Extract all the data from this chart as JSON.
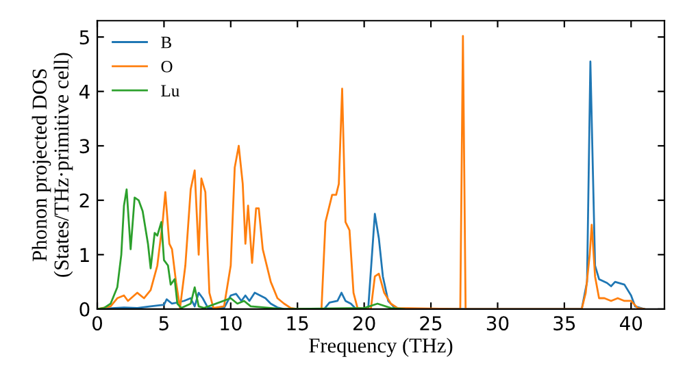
{
  "chart_data": {
    "type": "line",
    "xlabel": "Frequency (THz)",
    "ylabel": "Phonon projected DOS\n(States/THz·primitive cell)",
    "xlim": [
      0,
      42.5
    ],
    "ylim": [
      0,
      5.3
    ],
    "xticks": [
      0,
      5,
      10,
      15,
      20,
      25,
      30,
      35,
      40
    ],
    "yticks": [
      0,
      1,
      2,
      3,
      4,
      5
    ],
    "grid": false,
    "legend": "top left",
    "marker": "none",
    "line_style": "solid",
    "series": [
      {
        "name": "B",
        "color": "#1f77b4",
        "x": [
          0,
          2,
          3,
          4,
          5,
          5.2,
          5.6,
          6.5,
          7,
          7.3,
          7.6,
          7.9,
          8.3,
          9.5,
          10,
          10.4,
          10.8,
          11.1,
          11.4,
          11.8,
          12.2,
          12.6,
          13,
          13.5,
          14,
          17,
          17.4,
          18,
          18.3,
          18.6,
          19,
          19.4,
          20.3,
          20.8,
          21.1,
          21.4,
          21.8,
          22.3,
          23,
          36.3,
          36.7,
          36.95,
          37.3,
          37.6,
          38.2,
          38.5,
          38.8,
          39.5,
          40,
          40.3,
          41
        ],
        "values": [
          0,
          0.03,
          0.02,
          0.05,
          0.08,
          0.18,
          0.1,
          0.15,
          0.2,
          0.05,
          0.3,
          0.2,
          0.02,
          0.02,
          0.25,
          0.28,
          0.15,
          0.25,
          0.15,
          0.3,
          0.25,
          0.2,
          0.1,
          0.03,
          0,
          0,
          0.12,
          0.15,
          0.3,
          0.15,
          0.1,
          0,
          0,
          1.75,
          1.3,
          0.6,
          0.15,
          0.02,
          0,
          0,
          0.5,
          4.55,
          0.8,
          0.55,
          0.48,
          0.42,
          0.5,
          0.45,
          0.25,
          0.05,
          0
        ]
      },
      {
        "name": "O",
        "color": "#ff7f0e",
        "x": [
          0,
          1,
          1.5,
          2,
          2.3,
          3,
          3.5,
          4,
          4.5,
          4.9,
          5.1,
          5.4,
          5.6,
          5.9,
          6.2,
          6.6,
          7.0,
          7.3,
          7.6,
          7.8,
          8.1,
          8.4,
          8.7,
          9.5,
          10,
          10.3,
          10.6,
          10.9,
          11.1,
          11.3,
          11.6,
          11.9,
          12.1,
          12.4,
          13,
          13.5,
          14,
          14.5,
          15,
          16.8,
          17.1,
          17.6,
          17.9,
          18.1,
          18.35,
          18.6,
          18.9,
          19.2,
          19.5,
          20.5,
          20.8,
          21.1,
          21.5,
          22,
          22.5,
          27.2,
          27.4,
          27.6,
          36.3,
          36.6,
          36.9,
          37.05,
          37.3,
          37.6,
          38,
          38.5,
          39,
          39.5,
          40,
          40.5,
          41
        ],
        "values": [
          0,
          0.05,
          0.2,
          0.25,
          0.15,
          0.3,
          0.2,
          0.35,
          0.8,
          1.6,
          2.15,
          1.2,
          1.1,
          0.5,
          0.02,
          0.8,
          2.2,
          2.55,
          1.0,
          2.4,
          2.15,
          0.3,
          0.02,
          0.05,
          0.8,
          2.6,
          3.0,
          2.3,
          1.2,
          1.9,
          0.85,
          1.85,
          1.85,
          1.1,
          0.5,
          0.2,
          0.1,
          0.02,
          0,
          0,
          1.6,
          2.1,
          2.1,
          2.3,
          4.05,
          1.6,
          1.45,
          0.3,
          0.02,
          0,
          0.6,
          0.65,
          0.3,
          0.1,
          0.02,
          0,
          5.02,
          0,
          0,
          0.3,
          1.0,
          1.55,
          0.6,
          0.2,
          0.2,
          0.15,
          0.2,
          0.15,
          0.15,
          0.02,
          0
        ]
      },
      {
        "name": "Lu",
        "color": "#2ca02c",
        "x": [
          0,
          0.5,
          1,
          1.5,
          1.8,
          2.0,
          2.2,
          2.5,
          2.8,
          3.1,
          3.4,
          3.8,
          4.0,
          4.3,
          4.5,
          4.8,
          5.0,
          5.3,
          5.5,
          5.8,
          6.0,
          6.3,
          7.0,
          7.3,
          7.6,
          8,
          10,
          10.5,
          11,
          11.5,
          13,
          14,
          20,
          21,
          22,
          23
        ],
        "values": [
          0,
          0.02,
          0.1,
          0.4,
          1.0,
          1.9,
          2.2,
          1.1,
          2.05,
          2.0,
          1.8,
          1.2,
          0.75,
          1.4,
          1.35,
          1.6,
          0.9,
          0.8,
          0.45,
          0.55,
          0.1,
          0.02,
          0.1,
          0.4,
          0.05,
          0.02,
          0.2,
          0.1,
          0.15,
          0.05,
          0.02,
          0,
          0.02,
          0.1,
          0.02,
          0
        ]
      }
    ]
  }
}
